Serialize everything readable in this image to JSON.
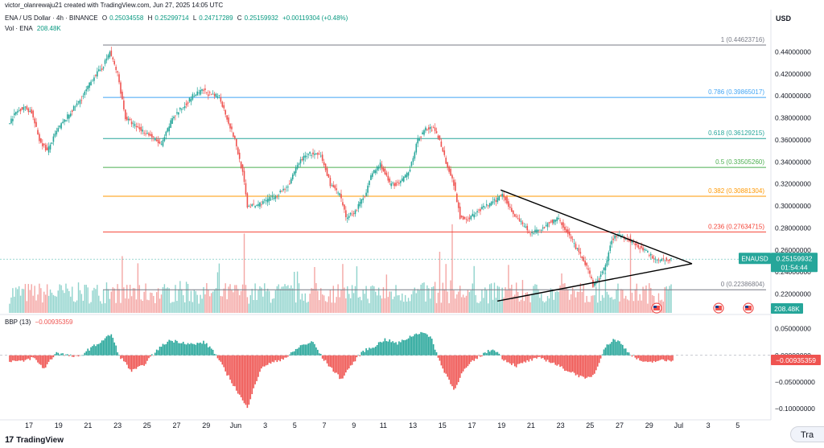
{
  "header": {
    "credit": "victor_olanrewaju21 created with TradingView.com, Jun 27, 2025 14:05 UTC",
    "symbol": "ENA / US Dollar · 4h · BINANCE",
    "open_label": "O",
    "open": "0.25034558",
    "high_label": "H",
    "high": "0.25299714",
    "low_label": "L",
    "low": "0.24717289",
    "close_label": "C",
    "close": "0.25159932",
    "change": "+0.00119304 (+0.48%)",
    "vol_label": "Vol · ENA",
    "vol": "208.48K"
  },
  "currency": "USD",
  "colors": {
    "up": "#26a69a",
    "down": "#ef5350",
    "upVol": "#8fd3cc",
    "downVol": "#f4a6a4"
  },
  "chart_data": [
    {
      "type": "candlestick",
      "title": "ENA / US Dollar · 4h · BINANCE",
      "x_labels": [
        "17",
        "19",
        "21",
        "23",
        "25",
        "27",
        "29",
        "Jun",
        "3",
        "5",
        "7",
        "9",
        "11",
        "13",
        "15",
        "17",
        "19",
        "21",
        "23",
        "25",
        "27",
        "29",
        "Jul",
        "3",
        "5"
      ],
      "y_ticks": [
        "0.44000000",
        "0.42000000",
        "0.40000000",
        "0.38000000",
        "0.36000000",
        "0.34000000",
        "0.32000000",
        "0.30000000",
        "0.28000000",
        "0.26000000",
        "0.24000000",
        "0.22000000"
      ],
      "ylim": [
        0.205,
        0.455
      ],
      "price_path": [
        [
          0,
          0.375
        ],
        [
          5,
          0.385
        ],
        [
          10,
          0.39
        ],
        [
          15,
          0.385
        ],
        [
          20,
          0.36
        ],
        [
          25,
          0.35
        ],
        [
          32,
          0.37
        ],
        [
          40,
          0.385
        ],
        [
          48,
          0.4
        ],
        [
          55,
          0.418
        ],
        [
          60,
          0.425
        ],
        [
          65,
          0.44
        ],
        [
          70,
          0.42
        ],
        [
          75,
          0.38
        ],
        [
          82,
          0.372
        ],
        [
          90,
          0.365
        ],
        [
          98,
          0.355
        ],
        [
          105,
          0.38
        ],
        [
          112,
          0.39
        ],
        [
          118,
          0.4
        ],
        [
          125,
          0.405
        ],
        [
          130,
          0.4
        ],
        [
          135,
          0.4
        ],
        [
          140,
          0.38
        ],
        [
          145,
          0.36
        ],
        [
          150,
          0.33
        ],
        [
          153,
          0.3
        ],
        [
          158,
          0.3
        ],
        [
          165,
          0.305
        ],
        [
          172,
          0.31
        ],
        [
          180,
          0.32
        ],
        [
          186,
          0.34
        ],
        [
          192,
          0.348
        ],
        [
          200,
          0.345
        ],
        [
          206,
          0.32
        ],
        [
          212,
          0.31
        ],
        [
          216,
          0.29
        ],
        [
          222,
          0.295
        ],
        [
          228,
          0.31
        ],
        [
          233,
          0.33
        ],
        [
          238,
          0.338
        ],
        [
          244,
          0.32
        ],
        [
          250,
          0.32
        ],
        [
          256,
          0.33
        ],
        [
          262,
          0.36
        ],
        [
          267,
          0.37
        ],
        [
          272,
          0.37
        ],
        [
          276,
          0.36
        ],
        [
          280,
          0.34
        ],
        [
          285,
          0.32
        ],
        [
          289,
          0.29
        ],
        [
          294,
          0.288
        ],
        [
          300,
          0.295
        ],
        [
          306,
          0.3
        ],
        [
          312,
          0.305
        ],
        [
          316,
          0.312
        ],
        [
          322,
          0.295
        ],
        [
          328,
          0.285
        ],
        [
          334,
          0.275
        ],
        [
          340,
          0.278
        ],
        [
          346,
          0.285
        ],
        [
          352,
          0.288
        ],
        [
          358,
          0.275
        ],
        [
          364,
          0.26
        ],
        [
          370,
          0.245
        ],
        [
          374,
          0.228
        ],
        [
          377,
          0.232
        ],
        [
          382,
          0.245
        ],
        [
          386,
          0.27
        ],
        [
          390,
          0.274
        ],
        [
          396,
          0.27
        ],
        [
          402,
          0.265
        ],
        [
          408,
          0.258
        ],
        [
          414,
          0.252
        ],
        [
          420,
          0.251
        ],
        [
          424,
          0.2516
        ]
      ],
      "volume_spikes": [
        [
          150,
          0.26
        ],
        [
          213,
          0.16
        ],
        [
          275,
          0.2
        ],
        [
          279,
          0.16
        ],
        [
          283,
          0.29
        ],
        [
          377,
          0.12
        ],
        [
          397,
          0.26
        ]
      ],
      "fib_levels": [
        {
          "ratio": "1",
          "value": "0.44623716",
          "color": "#787b86"
        },
        {
          "ratio": "0.786",
          "value": "0.39865017",
          "color": "#42a5f5"
        },
        {
          "ratio": "0.618",
          "value": "0.36129215",
          "color": "#26a69a"
        },
        {
          "ratio": "0.5",
          "value": "0.33505260",
          "color": "#4caf50"
        },
        {
          "ratio": "0.382",
          "value": "0.30881304",
          "color": "#ff9800"
        },
        {
          "ratio": "0.236",
          "value": "0.27634715",
          "color": "#f44336"
        },
        {
          "ratio": "0",
          "value": "0.22386804",
          "color": "#787b86"
        }
      ],
      "last_price": {
        "symbol": "ENAUSD",
        "value": "0.25159932",
        "countdown": "01:54:44"
      },
      "volume_last": "208.48K"
    },
    {
      "type": "histogram",
      "title": "BBP (13)",
      "current_value": "−0.00935359",
      "y_ticks": [
        "0.05000000",
        "0.00000000",
        "−0.05000000",
        "−0.10000000"
      ],
      "ylim": [
        -0.115,
        0.06
      ],
      "bbp_path": [
        [
          0,
          -0.01
        ],
        [
          8,
          -0.012
        ],
        [
          15,
          -0.004
        ],
        [
          22,
          -0.025
        ],
        [
          30,
          0.006
        ],
        [
          36,
          0.0005
        ],
        [
          44,
          -0.004
        ],
        [
          50,
          0.01
        ],
        [
          58,
          0.025
        ],
        [
          65,
          0.04
        ],
        [
          70,
          0.0
        ],
        [
          78,
          -0.03
        ],
        [
          85,
          -0.02
        ],
        [
          95,
          0.012
        ],
        [
          102,
          0.028
        ],
        [
          110,
          0.025
        ],
        [
          118,
          0.02
        ],
        [
          124,
          0.025
        ],
        [
          130,
          0.01
        ],
        [
          136,
          -0.02
        ],
        [
          142,
          -0.05
        ],
        [
          148,
          -0.08
        ],
        [
          152,
          -0.1
        ],
        [
          156,
          -0.06
        ],
        [
          162,
          -0.02
        ],
        [
          170,
          -0.012
        ],
        [
          178,
          -0.002
        ],
        [
          186,
          0.018
        ],
        [
          194,
          0.025
        ],
        [
          200,
          -0.005
        ],
        [
          206,
          -0.025
        ],
        [
          212,
          -0.045
        ],
        [
          218,
          -0.02
        ],
        [
          226,
          0.008
        ],
        [
          232,
          0.015
        ],
        [
          240,
          0.03
        ],
        [
          248,
          0.022
        ],
        [
          256,
          0.035
        ],
        [
          264,
          0.045
        ],
        [
          270,
          0.03
        ],
        [
          276,
          -0.02
        ],
        [
          280,
          -0.04
        ],
        [
          284,
          -0.065
        ],
        [
          290,
          -0.03
        ],
        [
          296,
          -0.012
        ],
        [
          304,
          0.005
        ],
        [
          310,
          0.012
        ],
        [
          316,
          -0.008
        ],
        [
          324,
          -0.02
        ],
        [
          332,
          -0.01
        ],
        [
          340,
          -0.005
        ],
        [
          348,
          -0.015
        ],
        [
          354,
          -0.025
        ],
        [
          362,
          -0.035
        ],
        [
          368,
          -0.045
        ],
        [
          374,
          -0.035
        ],
        [
          380,
          0.012
        ],
        [
          386,
          0.03
        ],
        [
          390,
          0.025
        ],
        [
          396,
          0.005
        ],
        [
          402,
          -0.008
        ],
        [
          408,
          -0.015
        ],
        [
          414,
          -0.01
        ],
        [
          420,
          -0.01
        ],
        [
          424,
          -0.0094
        ]
      ]
    }
  ],
  "footer": {
    "brand": "TradingView",
    "trade_button": "Tra"
  }
}
